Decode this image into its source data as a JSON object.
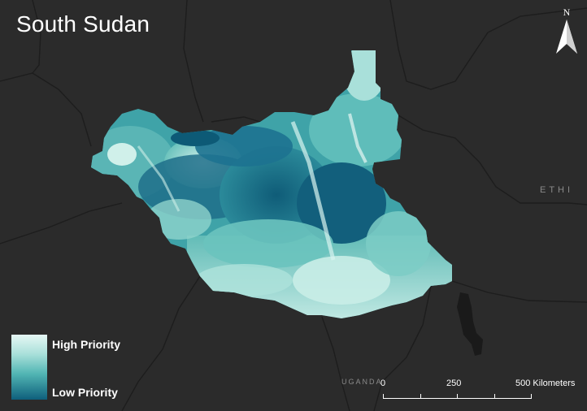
{
  "title": "South Sudan",
  "north_arrow": {
    "letter": "N",
    "icon": "north-arrow-icon"
  },
  "legend": {
    "high_label": "High Priority",
    "low_label": "Low Priority",
    "ramp_colors": [
      "#e6f7f4",
      "#a9e0da",
      "#52b6b4",
      "#0e5f7c"
    ]
  },
  "labels": {
    "ethiopia": "ETHI",
    "uganda": "UGANDA"
  },
  "scale_bar": {
    "labels": [
      "0",
      "250",
      "500 Kilometers"
    ]
  },
  "colors": {
    "background": "#2b2b2b",
    "border_lines": "#1e1e1e",
    "high_priority": "#e6f7f4",
    "low_priority": "#0e5f7c"
  }
}
